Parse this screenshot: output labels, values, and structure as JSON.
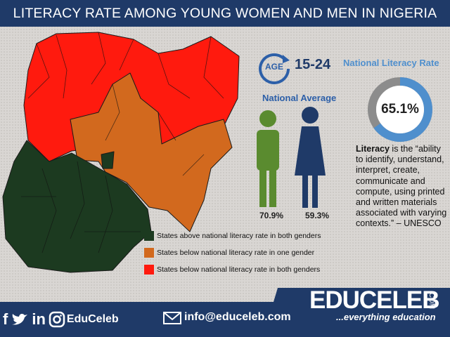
{
  "header": {
    "title": "LITERACY RATE AMONG YOUNG WOMEN AND MEN IN NIGERIA"
  },
  "age": {
    "badge": "AGE",
    "range": "15-24"
  },
  "national_average": {
    "label": "National Average",
    "male_pct": "70.9%",
    "female_pct": "59.3%"
  },
  "national_rate": {
    "label": "National Literacy Rate",
    "value": "65.1%",
    "fraction": 0.651
  },
  "definition": {
    "term": "Literacy",
    "text": " is the “ability to identify, understand, interpret, create, communicate and compute, using printed and written materials associated with varying contexts.” – UNESCO"
  },
  "legend": [
    {
      "label": "States above national literacy rate in both genders",
      "color": "#1c3a20"
    },
    {
      "label": "States below national literacy rate in one gender",
      "color": "#d2691e"
    },
    {
      "label": "States below national literacy rate in both genders",
      "color": "#ff1a0e"
    }
  ],
  "colors": {
    "red": "#ff1a0e",
    "orange": "#d2691e",
    "green": "#1c3a20",
    "navy": "#1f3a68",
    "blue": "#4f8fcd"
  },
  "footer": {
    "icons": [
      "facebook-icon",
      "twitter-icon",
      "linkedin-icon",
      "instagram-icon",
      "email-icon"
    ],
    "handle": "EduCeleb",
    "email": "info@educeleb.com",
    "brand": "EDUCELEB",
    "brand_suffix": ".COM",
    "tagline": "...everything education"
  }
}
